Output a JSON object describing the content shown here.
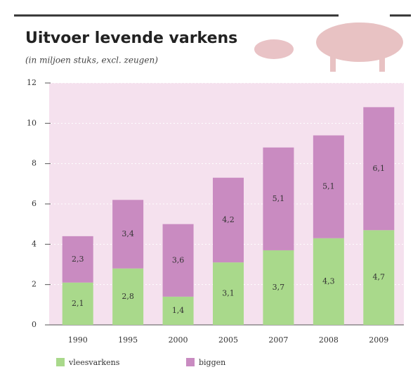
{
  "chart_data": {
    "type": "stacked-bar",
    "title": "Uitvoer levende varkens",
    "subtitle": "(in miljoen stuks, excl. zeugen)",
    "categories": [
      "1990",
      "1995",
      "2000",
      "2005",
      "2007",
      "2008",
      "2009"
    ],
    "series": [
      {
        "name": "vleesvarkens",
        "color": "#a9d98b",
        "values": [
          2.1,
          2.8,
          1.4,
          3.1,
          3.7,
          4.3,
          4.7
        ],
        "value_labels": [
          "2,1",
          "2,8",
          "1,4",
          "3,1",
          "3,7",
          "4,3",
          "4,7"
        ]
      },
      {
        "name": "biggen",
        "color": "#c98bc1",
        "values": [
          2.3,
          3.4,
          3.6,
          4.2,
          5.1,
          5.1,
          6.1
        ],
        "value_labels": [
          "2,3",
          "3,4",
          "3,6",
          "4,2",
          "5,1",
          "5,1",
          "6,1"
        ]
      }
    ],
    "ylim": [
      0,
      12
    ],
    "yticks": [
      0,
      2,
      4,
      6,
      8,
      10,
      12
    ],
    "grid": true
  }
}
